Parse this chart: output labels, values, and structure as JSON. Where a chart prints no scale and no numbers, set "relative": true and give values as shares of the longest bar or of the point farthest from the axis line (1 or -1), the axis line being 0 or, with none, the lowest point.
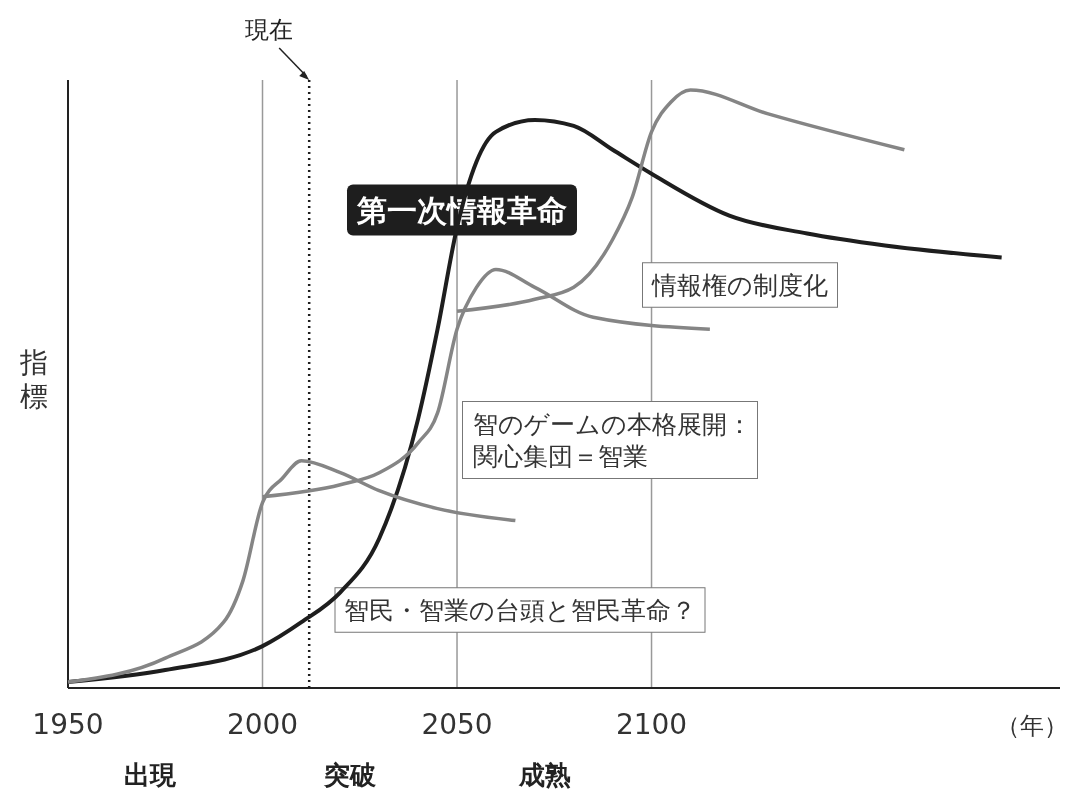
{
  "chart_data": {
    "type": "line",
    "relative": true,
    "ylabel": "指標",
    "xlabel": "（年）",
    "xlim": [
      1950,
      2205
    ],
    "xticks": [
      1950,
      2000,
      2050,
      2100
    ],
    "line_style": "solid",
    "series": [
      {
        "color": "#1e1e1e",
        "x": [
          1950,
          1975,
          2000,
          2010,
          2020,
          2030,
          2040,
          2045,
          2050,
          2055,
          2060,
          2070,
          2080,
          2090,
          2100,
          2120,
          2140,
          2160,
          2190
        ],
        "values": [
          0.01,
          0.03,
          0.07,
          0.11,
          0.16,
          0.25,
          0.45,
          0.6,
          0.77,
          0.88,
          0.93,
          0.95,
          0.94,
          0.9,
          0.86,
          0.79,
          0.76,
          0.74,
          0.72
        ]
      },
      {
        "color": "#858585",
        "x": [
          1950,
          1975,
          1990,
          1995,
          2000,
          2005,
          2010,
          2020,
          2030,
          2045,
          2065
        ],
        "values": [
          0.01,
          0.05,
          0.11,
          0.18,
          0.31,
          0.35,
          0.38,
          0.36,
          0.33,
          0.3,
          0.28
        ]
      },
      {
        "color": "#858585",
        "x": [
          2000,
          2020,
          2030,
          2040,
          2045,
          2050,
          2055,
          2060,
          2070,
          2085,
          2115
        ],
        "values": [
          0.32,
          0.34,
          0.36,
          0.41,
          0.46,
          0.6,
          0.67,
          0.7,
          0.67,
          0.62,
          0.6
        ]
      },
      {
        "color": "#858585",
        "x": [
          2050,
          2070,
          2080,
          2090,
          2095,
          2100,
          2105,
          2110,
          2130,
          2165
        ],
        "values": [
          0.63,
          0.65,
          0.67,
          0.75,
          0.82,
          0.93,
          0.98,
          1,
          0.96,
          0.9
        ]
      }
    ],
    "ref_lines": [
      {
        "axis": "x",
        "value": 2000,
        "color": "#999999"
      },
      {
        "axis": "x",
        "value": 2050,
        "color": "#999999"
      },
      {
        "axis": "x",
        "value": 2100,
        "color": "#999999"
      },
      {
        "axis": "x",
        "value": 2012,
        "label": "現在",
        "color": "#1e1e1e",
        "line_style": "dotted"
      }
    ],
    "annotations": [
      "第一次情報革命",
      "情報権の制度化",
      "智のゲームの本格展開：関心集団＝智業",
      "智民・智業の台頭と智民革命？",
      "出現",
      "突破",
      "成熟"
    ]
  }
}
